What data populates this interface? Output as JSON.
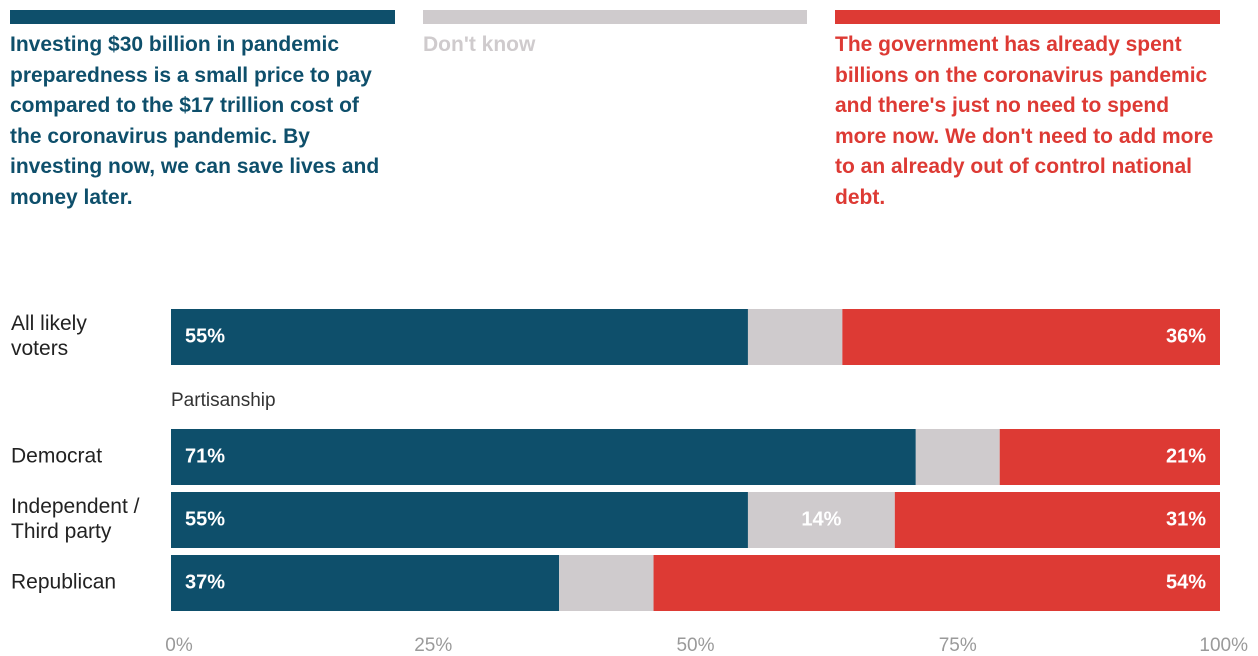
{
  "chart_data": {
    "type": "bar",
    "orientation": "horizontal",
    "stacked": true,
    "xlim": [
      0,
      100
    ],
    "x_ticks": [
      "0%",
      "25%",
      "50%",
      "75%",
      "100%"
    ],
    "legend_placement": "top",
    "series": [
      {
        "name": "Investing $30 billion in pandemic preparedness is a small price to pay compared to the $17 trillion cost of the coronavirus pandemic. By investing now, we can save lives and money later.",
        "color": "#0e4f6b",
        "label_color": "#ffffff",
        "values": [
          55,
          71,
          55,
          37
        ],
        "labels": [
          "55%",
          "71%",
          "55%",
          "37%"
        ]
      },
      {
        "name": "Don't know",
        "color": "#cfcbcd",
        "label_color": "#ffffff",
        "values": [
          9,
          8,
          14,
          9
        ],
        "labels": [
          "",
          "",
          "14%",
          ""
        ]
      },
      {
        "name": "The government has already spent billions on the coronavirus pandemic and there's just no need to spend more now. We don't need to add more to an already out of control national debt.",
        "color": "#dd3a34",
        "label_color": "#ffffff",
        "values": [
          36,
          21,
          31,
          54
        ],
        "labels": [
          "36%",
          "21%",
          "31%",
          "54%"
        ]
      }
    ],
    "rows": [
      {
        "label_lines": [
          "All likely",
          "voters"
        ]
      },
      {
        "group_label": "Partisanship"
      },
      {
        "label_lines": [
          "Democrat"
        ]
      },
      {
        "label_lines": [
          "Independent /",
          "Third party"
        ]
      },
      {
        "label_lines": [
          "Republican"
        ]
      }
    ]
  }
}
